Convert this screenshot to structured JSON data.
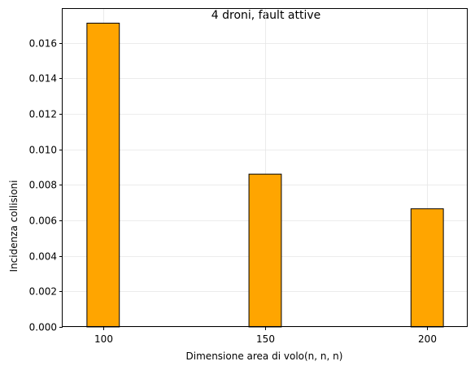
{
  "chart_data": {
    "type": "bar",
    "title": "4 droni, fault attive",
    "xlabel": "Dimensione area di volo(n, n, n)",
    "ylabel": "Incidenza collisioni",
    "categories": [
      "100",
      "150",
      "200"
    ],
    "x": [
      100,
      150,
      200
    ],
    "values": [
      0.0171,
      0.0086,
      0.00665
    ],
    "xlim": [
      87.5,
      212.5
    ],
    "ylim": [
      0,
      0.0179
    ],
    "yticks": [
      "0.000",
      "0.002",
      "0.004",
      "0.006",
      "0.008",
      "0.010",
      "0.012",
      "0.014",
      "0.016"
    ],
    "grid": true,
    "bar_color": "#FFA500",
    "edge_color": "#000000",
    "grid_color": "#e6e6e6"
  }
}
